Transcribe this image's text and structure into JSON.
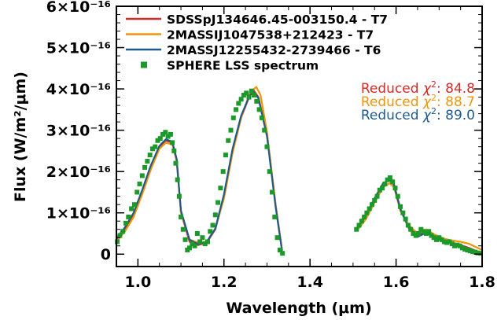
{
  "chart_data": {
    "type": "line",
    "title": "",
    "xlabel": "Wavelength (μm)",
    "ylabel": "Flux (W/m²/μm)",
    "xlim": [
      0.95,
      1.8
    ],
    "ylim": [
      -3e-17,
      6e-16
    ],
    "x_ticks": [
      {
        "value": 1.0,
        "label": "1.0"
      },
      {
        "value": 1.2,
        "label": "1.2"
      },
      {
        "value": 1.4,
        "label": "1.4"
      },
      {
        "value": 1.6,
        "label": "1.6"
      },
      {
        "value": 1.8,
        "label": "1.8"
      }
    ],
    "y_ticks": [
      {
        "value": 0,
        "label": "0"
      },
      {
        "value": 1e-16,
        "label": "1×10⁻¹⁶"
      },
      {
        "value": 2e-16,
        "label": "2×10⁻¹⁶"
      },
      {
        "value": 3e-16,
        "label": "3×10⁻¹⁶"
      },
      {
        "value": 4e-16,
        "label": "4×10⁻¹⁶"
      },
      {
        "value": 5e-16,
        "label": "5×10⁻¹⁶"
      },
      {
        "value": 6e-16,
        "label": "6×10⁻¹⁶"
      }
    ],
    "grid": false,
    "legend_position": "top-left",
    "series": [
      {
        "name": "SDSSpJ134646.45-003150.4 - T7",
        "color": "#d42a2a",
        "segments": [
          {
            "x": [
              0.95,
              0.97,
              0.99,
              1.01,
              1.03,
              1.05,
              1.065,
              1.08,
              1.09,
              1.1,
              1.12,
              1.14,
              1.16,
              1.18,
              1.2,
              1.22,
              1.24,
              1.26,
              1.27,
              1.28,
              1.3,
              1.32,
              1.335
            ],
            "y": [
              3.5e-17,
              6e-17,
              9.5e-17,
              1.5e-16,
              2.1e-16,
              2.6e-16,
              2.75e-16,
              2.7e-16,
              2.3e-16,
              1e-16,
              3e-17,
              2.2e-17,
              2.8e-17,
              6e-17,
              1.4e-16,
              2.5e-16,
              3.3e-16,
              3.85e-16,
              3.95e-16,
              3.8e-16,
              2.9e-16,
              1.2e-16,
              1e-17
            ]
          },
          {
            "x": [
              1.51,
              1.53,
              1.55,
              1.57,
              1.585,
              1.595,
              1.61,
              1.63,
              1.65,
              1.67,
              1.69,
              1.71,
              1.73,
              1.75,
              1.77,
              1.79,
              1.8
            ],
            "y": [
              6.2e-17,
              9e-17,
              1.3e-16,
              1.7e-16,
              1.82e-16,
              1.7e-16,
              1.1e-16,
              6.5e-17,
              4.5e-17,
              5.5e-17,
              4.2e-17,
              3.3e-17,
              2.8e-17,
              2.2e-17,
              1.5e-17,
              6e-18,
              3e-18
            ]
          }
        ]
      },
      {
        "name": "2MASSIJ1047538+212423 - T7",
        "color": "#f0960a",
        "segments": [
          {
            "x": [
              0.95,
              0.97,
              0.99,
              1.01,
              1.03,
              1.05,
              1.065,
              1.08,
              1.09,
              1.1,
              1.12,
              1.14,
              1.16,
              1.18,
              1.2,
              1.22,
              1.24,
              1.26,
              1.275,
              1.285,
              1.3,
              1.32,
              1.335
            ],
            "y": [
              3e-17,
              5.5e-17,
              9e-17,
              1.45e-16,
              2.05e-16,
              2.55e-16,
              2.7e-16,
              2.65e-16,
              2.25e-16,
              1e-16,
              3.5e-17,
              2.8e-17,
              3e-17,
              6.2e-17,
              1.35e-16,
              2.45e-16,
              3.3e-16,
              3.9e-16,
              4.05e-16,
              3.85e-16,
              2.95e-16,
              1.2e-16,
              1e-17
            ]
          },
          {
            "x": [
              1.51,
              1.53,
              1.55,
              1.57,
              1.585,
              1.595,
              1.61,
              1.63,
              1.65,
              1.67,
              1.69,
              1.71,
              1.73,
              1.75,
              1.77,
              1.79,
              1.8
            ],
            "y": [
              5.8e-17,
              8.5e-17,
              1.25e-16,
              1.62e-16,
              1.72e-16,
              1.62e-16,
              1.05e-16,
              7e-17,
              5e-17,
              6e-17,
              4.7e-17,
              3.8e-17,
              3.3e-17,
              3e-17,
              2.5e-17,
              1.5e-17,
              1e-17
            ]
          }
        ]
      },
      {
        "name": "2MASSJ12255432-2739466 - T6",
        "color": "#1f5a8c",
        "segments": [
          {
            "x": [
              0.95,
              0.97,
              0.99,
              1.01,
              1.03,
              1.05,
              1.065,
              1.08,
              1.09,
              1.1,
              1.12,
              1.14,
              1.16,
              1.18,
              1.2,
              1.22,
              1.24,
              1.26,
              1.27,
              1.28,
              1.3,
              1.32,
              1.335
            ],
            "y": [
              3.8e-17,
              6.5e-17,
              1e-16,
              1.55e-16,
              2.15e-16,
              2.62e-16,
              2.78e-16,
              2.72e-16,
              2.3e-16,
              1.05e-16,
              3.5e-17,
              2.4e-17,
              3e-17,
              6.2e-17,
              1.45e-16,
              2.55e-16,
              3.35e-16,
              3.85e-16,
              3.9e-16,
              3.78e-16,
              2.85e-16,
              1.15e-16,
              8e-18
            ]
          },
          {
            "x": [
              1.51,
              1.53,
              1.55,
              1.57,
              1.585,
              1.595,
              1.61,
              1.63,
              1.65,
              1.67,
              1.69,
              1.71,
              1.73,
              1.75,
              1.77,
              1.79,
              1.8
            ],
            "y": [
              6.5e-17,
              9.5e-17,
              1.35e-16,
              1.72e-16,
              1.8e-16,
              1.68e-16,
              1.08e-16,
              6.2e-17,
              4.2e-17,
              5.2e-17,
              4e-17,
              3e-17,
              2.5e-17,
              2e-17,
              1.2e-17,
              4e-18,
              2e-18
            ]
          }
        ]
      },
      {
        "name": "SPHERE LSS spectrum",
        "color": "#1b9a2a",
        "marker": "square",
        "segments": [
          {
            "x": [
              0.952,
              0.958,
              0.965,
              0.972,
              0.978,
              0.985,
              0.992,
              0.998,
              1.004,
              1.01,
              1.016,
              1.022,
              1.028,
              1.034,
              1.04,
              1.046,
              1.052,
              1.058,
              1.064,
              1.07,
              1.076,
              1.08,
              1.084,
              1.088,
              1.092,
              1.096,
              1.1,
              1.105,
              1.11,
              1.115,
              1.12,
              1.126,
              1.132,
              1.138,
              1.144,
              1.15,
              1.156,
              1.162,
              1.168,
              1.174,
              1.18,
              1.186,
              1.192,
              1.198,
              1.204,
              1.21,
              1.216,
              1.222,
              1.228,
              1.234,
              1.24,
              1.246,
              1.252,
              1.258,
              1.264,
              1.27,
              1.276,
              1.282,
              1.288,
              1.294,
              1.3,
              1.306,
              1.312,
              1.318,
              1.324,
              1.33,
              1.336
            ],
            "y": [
              3e-17,
              4.5e-17,
              5.5e-17,
              7.5e-17,
              9e-17,
              1.1e-16,
              1.2e-16,
              1.5e-16,
              1.7e-16,
              1.9e-16,
              2.1e-16,
              2.25e-16,
              2.4e-16,
              2.55e-16,
              2.6e-16,
              2.75e-16,
              2.8e-16,
              2.9e-16,
              2.95e-16,
              2.85e-16,
              2.9e-16,
              2.7e-16,
              2.5e-16,
              2.2e-16,
              1.8e-16,
              1.4e-16,
              9e-17,
              6e-17,
              3.5e-17,
              1e-17,
              1.5e-17,
              2.5e-17,
              2e-17,
              5e-17,
              3e-17,
              4e-17,
              2.5e-17,
              3e-17,
              5.5e-17,
              7e-17,
              9.5e-17,
              1.25e-16,
              1.6e-16,
              2e-16,
              2.4e-16,
              2.75e-16,
              3e-16,
              3.3e-16,
              3.5e-16,
              3.65e-16,
              3.75e-16,
              3.85e-16,
              3.9e-16,
              3.8e-16,
              3.95e-16,
              3.85e-16,
              3.7e-16,
              3.5e-16,
              3.3e-16,
              3e-16,
              2.6e-16,
              2e-16,
              1.5e-16,
              9e-17,
              4e-17,
              1e-17,
              2e-18
            ]
          },
          {
            "x": [
              1.508,
              1.514,
              1.52,
              1.526,
              1.532,
              1.538,
              1.544,
              1.55,
              1.556,
              1.562,
              1.568,
              1.574,
              1.58,
              1.586,
              1.592,
              1.598,
              1.604,
              1.61,
              1.616,
              1.622,
              1.628,
              1.634,
              1.64,
              1.646,
              1.652,
              1.658,
              1.664,
              1.67,
              1.676,
              1.682,
              1.688,
              1.694,
              1.7,
              1.706,
              1.712,
              1.718,
              1.724,
              1.73,
              1.736,
              1.742,
              1.748,
              1.754,
              1.76,
              1.766,
              1.772,
              1.778,
              1.784,
              1.79,
              1.796
            ],
            "y": [
              6e-17,
              7e-17,
              8e-17,
              9e-17,
              1e-16,
              1.1e-16,
              1.2e-16,
              1.3e-16,
              1.4e-16,
              1.55e-16,
              1.6e-16,
              1.7e-16,
              1.8e-16,
              1.85e-16,
              1.75e-16,
              1.6e-16,
              1.4e-16,
              1.15e-16,
              1e-16,
              8.5e-17,
              7e-17,
              6e-17,
              5e-17,
              4.5e-17,
              5e-17,
              6e-17,
              5.5e-17,
              5e-17,
              5.5e-17,
              4.5e-17,
              4e-17,
              3.5e-17,
              4e-17,
              3.5e-17,
              3e-17,
              2.8e-17,
              3e-17,
              2.5e-17,
              2e-17,
              2.2e-17,
              2e-17,
              1.5e-17,
              1.2e-17,
              1e-17,
              8e-18,
              6e-18,
              5e-18,
              3e-18,
              2e-18
            ]
          }
        ]
      }
    ],
    "annotations": [
      {
        "prefix": "Reduced ",
        "symbol": "χ",
        "superscript": "2",
        "suffix": ": 84.8",
        "color": "#d42a2a"
      },
      {
        "prefix": "Reduced ",
        "symbol": "χ",
        "superscript": "2",
        "suffix": ": 88.7",
        "color": "#f0960a"
      },
      {
        "prefix": "Reduced ",
        "symbol": "χ",
        "superscript": "2",
        "suffix": ": 89.0",
        "color": "#1f5a8c"
      }
    ]
  }
}
